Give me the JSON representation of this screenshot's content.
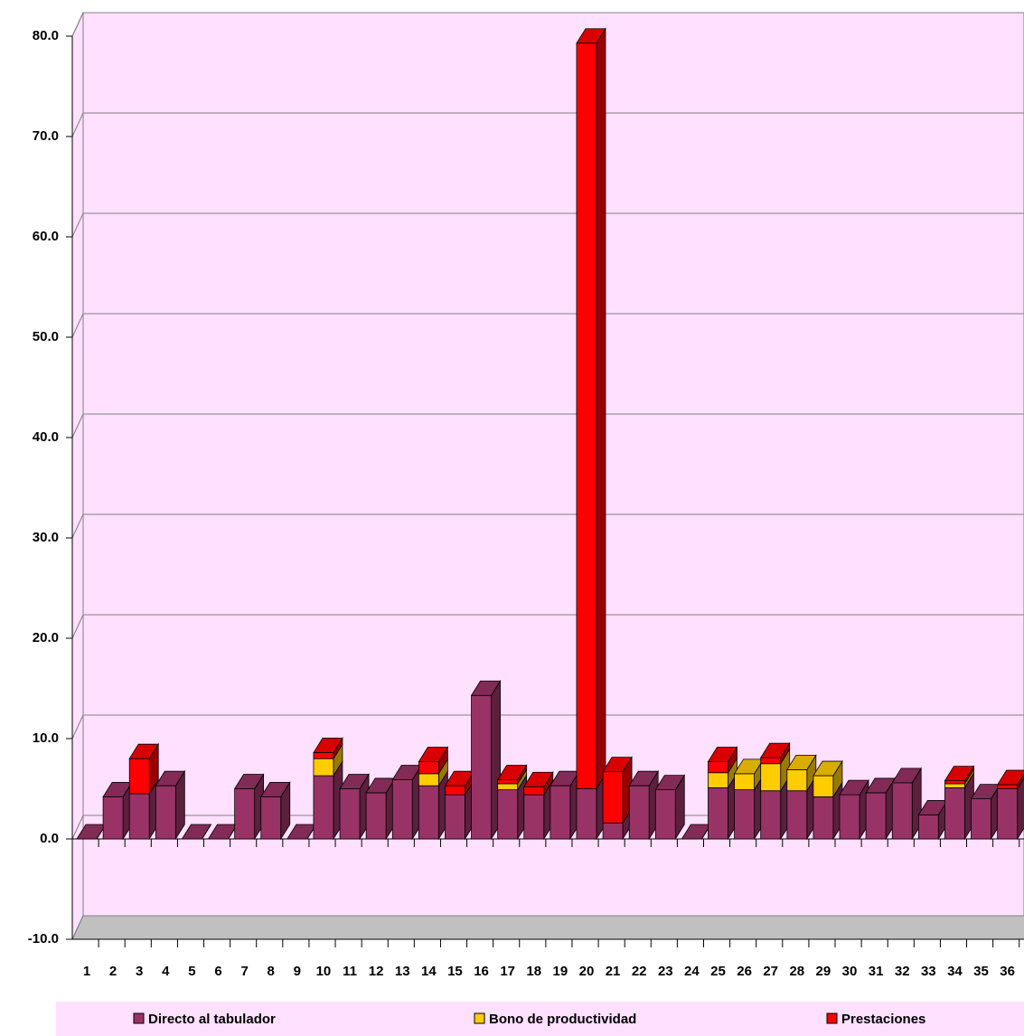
{
  "chart_data": {
    "type": "bar3d_stacked",
    "categories": [
      "1",
      "2",
      "3",
      "4",
      "5",
      "6",
      "7",
      "8",
      "9",
      "10",
      "11",
      "12",
      "13",
      "14",
      "15",
      "16",
      "17",
      "18",
      "19",
      "20",
      "21",
      "22",
      "23",
      "24",
      "25",
      "26",
      "27",
      "28",
      "29",
      "30",
      "31",
      "32",
      "33",
      "34",
      "35",
      "36"
    ],
    "series": [
      {
        "name": "Directo al tabulador",
        "color": "#993366",
        "values": [
          0,
          4.2,
          4.5,
          5.3,
          0,
          0,
          5.0,
          4.2,
          0,
          6.3,
          5.0,
          4.6,
          5.9,
          5.3,
          4.4,
          14.3,
          4.9,
          4.4,
          5.3,
          5.0,
          1.6,
          5.3,
          4.9,
          0,
          5.1,
          4.9,
          4.8,
          4.8,
          4.2,
          4.4,
          4.6,
          5.6,
          2.4,
          5.1,
          4.0,
          5.0
        ]
      },
      {
        "name": "Bono de productividad",
        "color": "#ffcc00",
        "values": [
          0,
          0,
          0,
          0,
          0,
          0,
          0,
          0,
          0,
          1.7,
          0,
          0,
          0,
          1.2,
          0,
          0,
          0.6,
          0,
          0,
          0,
          0,
          0,
          0,
          0,
          1.5,
          1.6,
          2.7,
          2.1,
          2.1,
          0,
          0,
          0,
          0,
          0.4,
          0,
          0
        ]
      },
      {
        "name": "Prestaciones",
        "color": "#ff0000",
        "values": [
          0,
          0,
          3.5,
          0,
          0,
          0,
          0,
          0,
          0,
          0.6,
          0,
          0,
          0,
          1.2,
          0.9,
          0,
          0.4,
          0.8,
          0,
          74.3,
          5.1,
          0,
          0,
          0,
          1.1,
          0,
          0.6,
          0,
          0,
          0,
          0,
          0,
          0,
          0.3,
          0,
          0.4
        ]
      }
    ],
    "ylim": [
      -10,
      80
    ],
    "yticks": [
      {
        "value": -10,
        "label": "-10.0"
      },
      {
        "value": 0,
        "label": "0.0"
      },
      {
        "value": 10,
        "label": "10.0"
      },
      {
        "value": 20,
        "label": "20.0"
      },
      {
        "value": 30,
        "label": "30.0"
      },
      {
        "value": 40,
        "label": "40.0"
      },
      {
        "value": 50,
        "label": "50.0"
      },
      {
        "value": 60,
        "label": "60.0"
      },
      {
        "value": 70,
        "label": "70.0"
      },
      {
        "value": 80,
        "label": "80.0"
      }
    ],
    "grid": true,
    "legend": "bottom"
  }
}
